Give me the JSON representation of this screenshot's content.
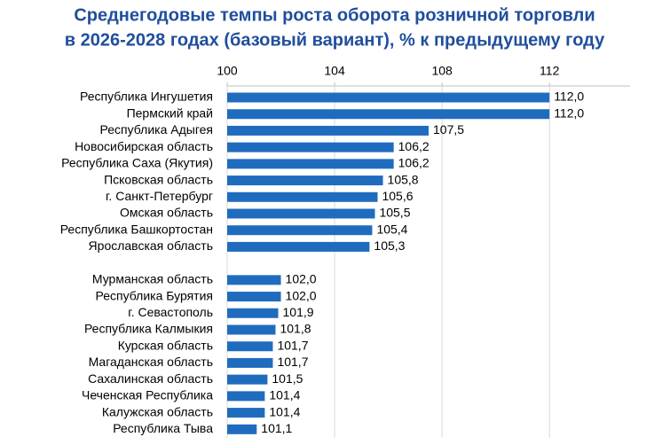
{
  "chart_data": {
    "type": "bar",
    "orientation": "horizontal",
    "title": [
      "Среднегодовые темпы роста оборота розничной торговли",
      "в 2026-2028 годах (базовый вариант), % к предыдущему году"
    ],
    "categories": [
      "Республика Ингушетия",
      "Пермский край",
      "Республика Адыгея",
      "Новосибирская область",
      "Республика Саха (Якутия)",
      "Псковская область",
      "г. Санкт-Петербург",
      "Омская область",
      "Республика Башкортостан",
      "Ярославская область",
      null,
      "Мурманская область",
      "Республика Бурятия",
      "г. Севастополь",
      "Республика Калмыкия",
      "Курская область",
      "Магаданская область",
      "Сахалинская область",
      "Чеченская Республика",
      "Калужская область",
      "Республика Тыва"
    ],
    "values": [
      112.0,
      112.0,
      107.5,
      106.2,
      106.2,
      105.8,
      105.6,
      105.5,
      105.4,
      105.3,
      null,
      102.0,
      102.0,
      101.9,
      101.8,
      101.7,
      101.7,
      101.5,
      101.4,
      101.4,
      101.1
    ],
    "value_labels": [
      "112,0",
      "112,0",
      "107,5",
      "106,2",
      "106,2",
      "105,8",
      "105,6",
      "105,5",
      "105,4",
      "105,3",
      null,
      "102,0",
      "102,0",
      "101,9",
      "101,8",
      "101,7",
      "101,7",
      "101,5",
      "101,4",
      "101,4",
      "101,1"
    ],
    "color": "#1f6cbf",
    "xlim": [
      100,
      115
    ],
    "xticks": [
      100,
      104,
      108,
      112
    ],
    "grid": true
  }
}
